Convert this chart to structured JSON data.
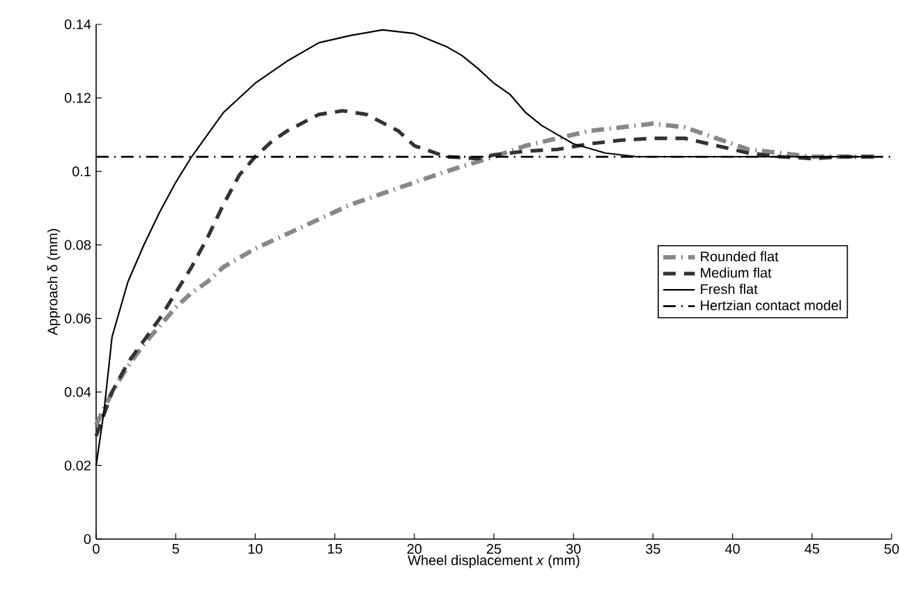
{
  "chart_data": {
    "type": "line",
    "xlabel": "Wheel displacement  *x*  (mm)",
    "ylabel": "Approach  δ  (mm)",
    "xlim": [
      0,
      50
    ],
    "ylim": [
      0,
      0.14
    ],
    "xticks": [
      0,
      5,
      10,
      15,
      20,
      25,
      30,
      35,
      40,
      45,
      50
    ],
    "yticks": [
      0,
      0.02,
      0.04,
      0.06,
      0.08,
      0.1,
      0.12,
      0.14
    ],
    "grid": false,
    "legend": "center right",
    "marker": "none",
    "series": [
      {
        "name": "Rounded flat",
        "color": "#888888",
        "line_style": "dashdot",
        "x": [
          0,
          1,
          2,
          3,
          4,
          5,
          6,
          7,
          8,
          10,
          12,
          14,
          16,
          18,
          20,
          22,
          25,
          27,
          29,
          31,
          33,
          35,
          37,
          39,
          41,
          43,
          45,
          47,
          49
        ],
        "values": [
          0.031,
          0.04,
          0.047,
          0.053,
          0.058,
          0.063,
          0.067,
          0.07,
          0.074,
          0.079,
          0.083,
          0.087,
          0.091,
          0.094,
          0.097,
          0.1,
          0.104,
          0.107,
          0.109,
          0.111,
          0.112,
          0.113,
          0.112,
          0.109,
          0.106,
          0.105,
          0.104,
          0.104,
          0.104
        ]
      },
      {
        "name": "Medium flat",
        "color": "#333333",
        "line_style": "dashed",
        "x": [
          0,
          1,
          2,
          4,
          6,
          7,
          8,
          9,
          10,
          11,
          12,
          14,
          15.5,
          17,
          19,
          20,
          22,
          24,
          25,
          27,
          29,
          31,
          33,
          35,
          37,
          39,
          41,
          43,
          45,
          47,
          49
        ],
        "values": [
          0.028,
          0.04,
          0.048,
          0.06,
          0.074,
          0.082,
          0.091,
          0.099,
          0.104,
          0.108,
          0.111,
          0.1155,
          0.1165,
          0.1155,
          0.111,
          0.107,
          0.104,
          0.1035,
          0.1045,
          0.1055,
          0.106,
          0.1075,
          0.1085,
          0.109,
          0.109,
          0.107,
          0.105,
          0.104,
          0.1035,
          0.104,
          0.104
        ]
      },
      {
        "name": "Fresh flat",
        "color": "#000000",
        "line_style": "solid",
        "x": [
          0,
          0.5,
          1,
          2,
          3,
          4,
          5,
          6,
          7,
          8,
          9,
          10,
          12,
          14,
          16,
          18,
          20,
          22,
          23,
          24,
          25,
          26,
          27,
          28,
          29,
          30,
          32,
          34,
          40,
          45,
          49
        ],
        "values": [
          0.02,
          0.035,
          0.055,
          0.07,
          0.08,
          0.089,
          0.097,
          0.104,
          0.11,
          0.116,
          0.12,
          0.124,
          0.13,
          0.135,
          0.137,
          0.1385,
          0.1375,
          0.134,
          0.1315,
          0.128,
          0.124,
          0.121,
          0.116,
          0.1125,
          0.11,
          0.1075,
          0.105,
          0.104,
          0.104,
          0.104,
          0.104
        ]
      },
      {
        "name": "Hertzian contact model",
        "color": "#000000",
        "line_style": "dashdot",
        "x": [
          0,
          50
        ],
        "values": [
          0.104,
          0.104
        ]
      }
    ]
  }
}
